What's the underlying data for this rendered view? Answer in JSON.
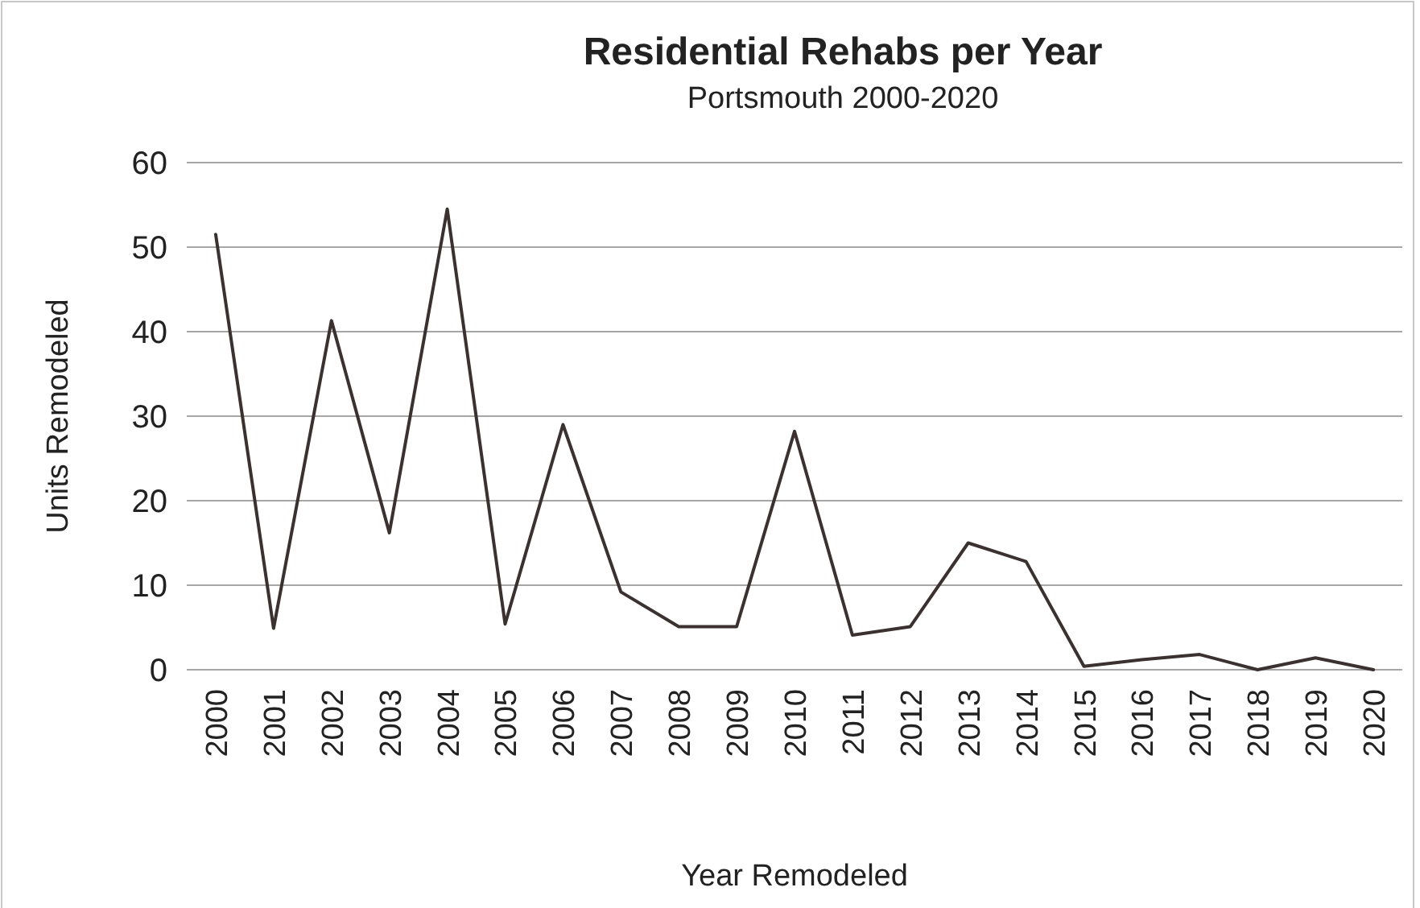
{
  "chart_data": {
    "type": "line",
    "title": "Residential Rehabs per Year",
    "subtitle": "Portsmouth 2000-2020",
    "xlabel": "Year Remodeled",
    "ylabel": "Units Remodeled",
    "categories": [
      "2000",
      "2001",
      "2002",
      "2003",
      "2004",
      "2005",
      "2006",
      "2007",
      "2008",
      "2009",
      "2010",
      "2011",
      "2012",
      "2013",
      "2014",
      "2015",
      "2016",
      "2017",
      "2018",
      "2019",
      "2020"
    ],
    "series": [
      {
        "color": "#3b3131",
        "values": [
          51.5,
          4.9,
          41.3,
          16.2,
          54.5,
          5.4,
          29,
          9.2,
          5.1,
          5.1,
          28.2,
          4.1,
          5.1,
          15,
          12.8,
          0.4,
          1.2,
          1.8,
          0,
          1.4,
          0
        ]
      }
    ],
    "ylim": [
      0,
      60
    ],
    "yticks": [
      0,
      10,
      20,
      30,
      40,
      50,
      60
    ],
    "grid": "y",
    "marker": "none",
    "line_style": "solid"
  }
}
